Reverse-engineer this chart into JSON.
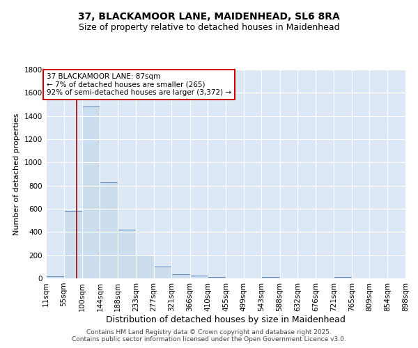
{
  "title": "37, BLACKAMOOR LANE, MAIDENHEAD, SL6 8RA",
  "subtitle": "Size of property relative to detached houses in Maidenhead",
  "xlabel": "Distribution of detached houses by size in Maidenhead",
  "ylabel": "Number of detached properties",
  "bin_edges": [
    11,
    55,
    100,
    144,
    188,
    233,
    277,
    321,
    366,
    410,
    455,
    499,
    543,
    588,
    632,
    676,
    721,
    765,
    809,
    854,
    898
  ],
  "bin_labels": [
    "11sqm",
    "55sqm",
    "100sqm",
    "144sqm",
    "188sqm",
    "233sqm",
    "277sqm",
    "321sqm",
    "366sqm",
    "410sqm",
    "455sqm",
    "499sqm",
    "543sqm",
    "588sqm",
    "632sqm",
    "676sqm",
    "721sqm",
    "765sqm",
    "809sqm",
    "854sqm",
    "898sqm"
  ],
  "bar_heights": [
    20,
    580,
    1480,
    830,
    420,
    200,
    100,
    35,
    25,
    15,
    0,
    0,
    15,
    0,
    0,
    0,
    15,
    0,
    0,
    0
  ],
  "bar_color": "#ccdded",
  "bar_edge_color": "#5588bb",
  "property_line_x": 87,
  "property_line_color": "#aa0000",
  "annotation_text": "37 BLACKAMOOR LANE: 87sqm\n← 7% of detached houses are smaller (265)\n92% of semi-detached houses are larger (3,372) →",
  "annotation_box_color": "#ffffff",
  "annotation_box_edge_color": "#cc0000",
  "ylim": [
    0,
    1800
  ],
  "yticks": [
    0,
    200,
    400,
    600,
    800,
    1000,
    1200,
    1400,
    1600,
    1800
  ],
  "background_color": "#dce8f5",
  "grid_color": "#ffffff",
  "footer_line1": "Contains HM Land Registry data © Crown copyright and database right 2025.",
  "footer_line2": "Contains public sector information licensed under the Open Government Licence v3.0.",
  "title_fontsize": 10,
  "subtitle_fontsize": 9,
  "xlabel_fontsize": 9,
  "ylabel_fontsize": 8,
  "tick_fontsize": 7.5,
  "annotation_fontsize": 7.5,
  "footer_fontsize": 6.5
}
